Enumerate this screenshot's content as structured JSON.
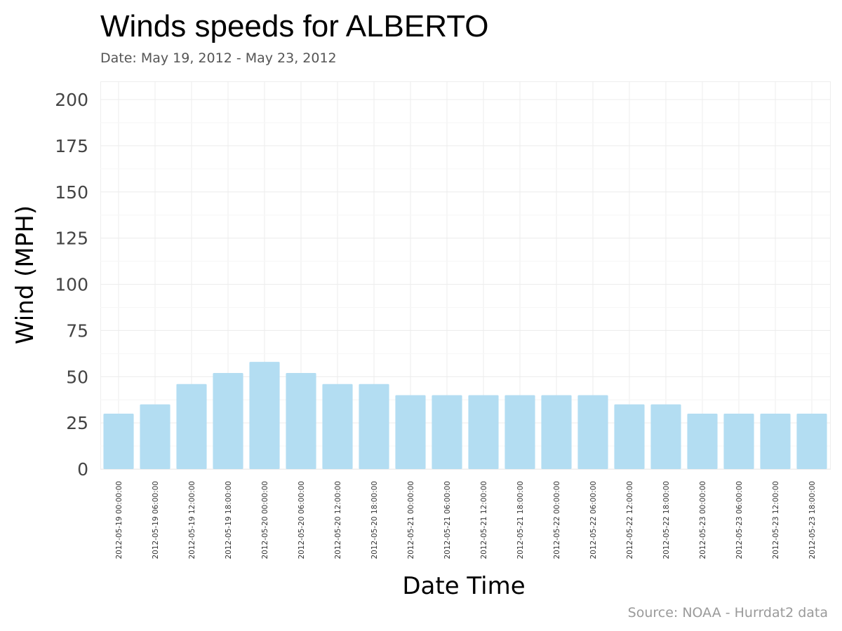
{
  "chart_data": {
    "type": "bar",
    "title": "Winds speeds for ALBERTO",
    "subtitle": "Date:  May 19, 2012 - May 23, 2012",
    "xlabel": "Date Time",
    "ylabel": "Wind (MPH)",
    "caption": "Source: NOAA - Hurrdat2 data",
    "ylim": [
      0,
      210
    ],
    "yticks": [
      0,
      25,
      50,
      75,
      100,
      125,
      150,
      175,
      200
    ],
    "grid": true,
    "bar_color": "#b3ddf2",
    "categories": [
      "2012-05-19 00:00:00",
      "2012-05-19 06:00:00",
      "2012-05-19 12:00:00",
      "2012-05-19 18:00:00",
      "2012-05-20 00:00:00",
      "2012-05-20 06:00:00",
      "2012-05-20 12:00:00",
      "2012-05-20 18:00:00",
      "2012-05-21 00:00:00",
      "2012-05-21 06:00:00",
      "2012-05-21 12:00:00",
      "2012-05-21 18:00:00",
      "2012-05-22 00:00:00",
      "2012-05-22 06:00:00",
      "2012-05-22 12:00:00",
      "2012-05-22 18:00:00",
      "2012-05-23 00:00:00",
      "2012-05-23 06:00:00",
      "2012-05-23 12:00:00",
      "2012-05-23 18:00:00"
    ],
    "values": [
      30,
      35,
      46,
      52,
      58,
      52,
      46,
      46,
      40,
      40,
      40,
      40,
      40,
      40,
      35,
      35,
      30,
      30,
      30,
      30
    ]
  }
}
